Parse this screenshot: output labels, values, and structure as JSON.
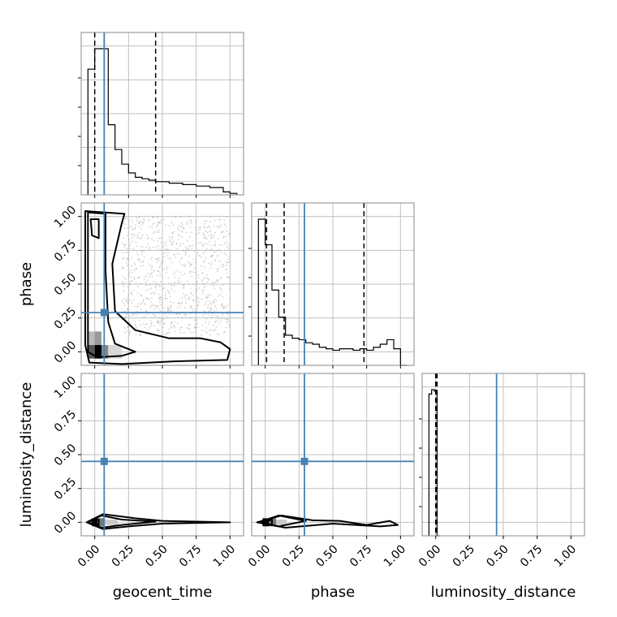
{
  "chart_data": {
    "type": "corner",
    "parameters": [
      "geocent_time",
      "phase",
      "luminosity_distance"
    ],
    "axis_range": [
      -0.1,
      1.1
    ],
    "tick_values": [
      0.0,
      0.25,
      0.5,
      0.75,
      1.0
    ],
    "tick_labels": [
      "0.00",
      "0.25",
      "0.50",
      "0.75",
      "1.00"
    ],
    "grid": true,
    "colors": {
      "truth": "#4682b4",
      "hist": "#000000",
      "contour": "#000000",
      "scatter": "#9a9a9a",
      "grid": "#c0c0c0",
      "frame": "#888888"
    },
    "truths": {
      "geocent_time": 0.07,
      "phase": 0.29,
      "luminosity_distance": 0.45
    },
    "quantiles": {
      "geocent_time": [
        0.0,
        0.07,
        0.45
      ],
      "phase": [
        0.01,
        0.14,
        0.73
      ],
      "luminosity_distance": [
        0.0,
        0.005,
        0.01
      ]
    },
    "histograms": {
      "geocent_time": {
        "bin_edges": [
          -0.05,
          -0.0,
          0.05,
          0.1,
          0.15,
          0.2,
          0.25,
          0.3,
          0.35,
          0.4,
          0.45,
          0.5,
          0.55,
          0.6,
          0.65,
          0.7,
          0.75,
          0.8,
          0.85,
          0.9,
          0.95,
          1.0,
          1.05
        ],
        "counts": [
          0.86,
          1.0,
          1.0,
          0.48,
          0.31,
          0.21,
          0.15,
          0.12,
          0.11,
          0.1,
          0.09,
          0.09,
          0.08,
          0.08,
          0.07,
          0.07,
          0.06,
          0.06,
          0.05,
          0.05,
          0.02,
          0.01
        ]
      },
      "phase": {
        "bin_edges": [
          -0.05,
          0.0,
          0.05,
          0.1,
          0.15,
          0.2,
          0.25,
          0.3,
          0.35,
          0.4,
          0.45,
          0.5,
          0.55,
          0.6,
          0.65,
          0.7,
          0.75,
          0.8,
          0.85,
          0.9,
          0.95,
          1.0,
          1.05
        ],
        "counts": [
          0.97,
          0.8,
          0.5,
          0.32,
          0.2,
          0.18,
          0.17,
          0.15,
          0.14,
          0.12,
          0.11,
          0.1,
          0.11,
          0.11,
          0.1,
          0.11,
          0.1,
          0.12,
          0.14,
          0.17,
          0.11,
          0.0
        ]
      },
      "luminosity_distance": {
        "bin_edges": [
          -0.05,
          -0.03,
          -0.01,
          0.01,
          0.03
        ],
        "counts": [
          0.97,
          1.0,
          0.99,
          0.0
        ]
      }
    },
    "contours_2d": {
      "phase_vs_geocent_time": [
        [
          [
            -0.03,
            0.98
          ],
          [
            -0.02,
            0.86
          ],
          [
            0.03,
            0.84
          ],
          [
            0.03,
            0.98
          ]
        ],
        [
          [
            -0.05,
            1.03
          ],
          [
            0.08,
            1.02
          ],
          [
            0.08,
            0.6
          ],
          [
            0.1,
            0.22
          ],
          [
            0.15,
            0.06
          ],
          [
            0.3,
            0.0
          ],
          [
            0.2,
            -0.03
          ],
          [
            0.02,
            -0.04
          ],
          [
            -0.05,
            0.0
          ],
          [
            -0.05,
            0.5
          ]
        ],
        [
          [
            -0.07,
            1.04
          ],
          [
            0.22,
            1.02
          ],
          [
            0.2,
            0.95
          ],
          [
            0.13,
            0.65
          ],
          [
            0.15,
            0.3
          ],
          [
            0.3,
            0.16
          ],
          [
            0.55,
            0.1
          ],
          [
            0.78,
            0.1
          ],
          [
            0.93,
            0.07
          ],
          [
            1.0,
            0.02
          ],
          [
            0.98,
            -0.06
          ],
          [
            0.6,
            -0.07
          ],
          [
            0.2,
            -0.09
          ],
          [
            -0.04,
            -0.08
          ],
          [
            -0.07,
            0.05
          ],
          [
            -0.07,
            0.6
          ]
        ]
      ],
      "luminosity_distance_vs_geocent_time": [
        [
          [
            -0.02,
            0.0
          ],
          [
            0.03,
            0.02
          ],
          [
            0.03,
            -0.02
          ]
        ],
        [
          [
            -0.05,
            0.0
          ],
          [
            0.05,
            0.05
          ],
          [
            0.2,
            0.02
          ],
          [
            0.45,
            0.005
          ],
          [
            0.2,
            -0.02
          ],
          [
            0.05,
            -0.04
          ]
        ],
        [
          [
            -0.06,
            0.0
          ],
          [
            0.06,
            0.06
          ],
          [
            0.3,
            0.03
          ],
          [
            0.5,
            0.01
          ],
          [
            1.0,
            0.0
          ],
          [
            0.5,
            -0.01
          ],
          [
            0.25,
            -0.03
          ],
          [
            0.06,
            -0.05
          ]
        ]
      ],
      "luminosity_distance_vs_phase": [
        [
          [
            -0.02,
            0.0
          ],
          [
            0.05,
            0.02
          ],
          [
            0.05,
            -0.02
          ]
        ],
        [
          [
            -0.05,
            0.0
          ],
          [
            0.1,
            0.05
          ],
          [
            0.3,
            0.01
          ],
          [
            0.1,
            -0.03
          ]
        ],
        [
          [
            -0.06,
            0.0
          ],
          [
            0.12,
            0.05
          ],
          [
            0.35,
            0.015
          ],
          [
            0.55,
            0.01
          ],
          [
            0.75,
            -0.02
          ],
          [
            0.92,
            0.01
          ],
          [
            0.98,
            -0.02
          ],
          [
            0.85,
            -0.03
          ],
          [
            0.5,
            -0.01
          ],
          [
            0.15,
            -0.04
          ]
        ]
      ]
    }
  }
}
